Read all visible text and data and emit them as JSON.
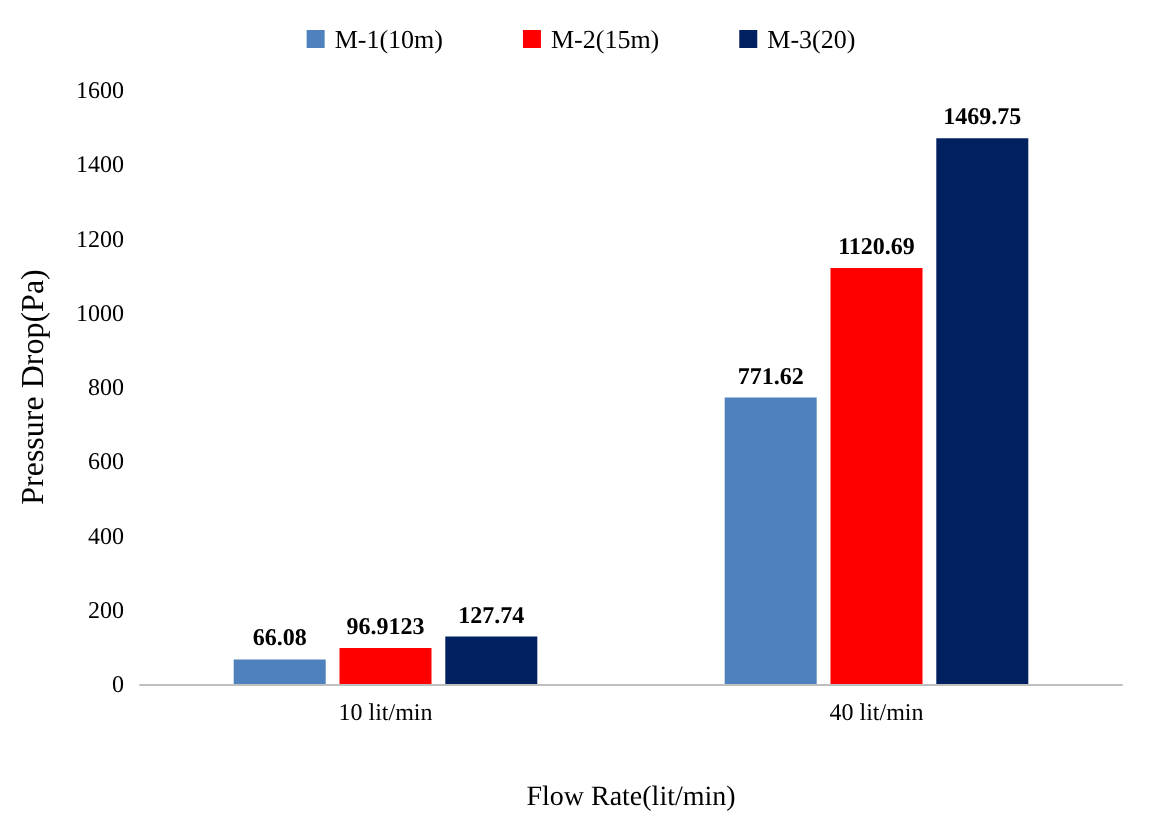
{
  "chart_data": {
    "type": "bar",
    "xlabel": "Flow Rate(lit/min)",
    "ylabel": "Pressure Drop(Pa)",
    "categories": [
      "10 lit/min",
      "40 lit/min"
    ],
    "series": [
      {
        "name": "M-1(10m)",
        "color": "#4f81bd",
        "values": [
          66.08,
          771.62
        ]
      },
      {
        "name": "M-2(15m)",
        "color": "#ff0000",
        "values": [
          96.9123,
          1120.69
        ]
      },
      {
        "name": "M-3(20)",
        "color": "#002060",
        "values": [
          127.74,
          1469.75
        ]
      }
    ],
    "ylim": [
      0,
      1600
    ],
    "yticks": [
      0,
      200,
      400,
      600,
      800,
      1000,
      1200,
      1400,
      1600
    ],
    "data_labels": true,
    "grid": false,
    "legend": "top"
  }
}
